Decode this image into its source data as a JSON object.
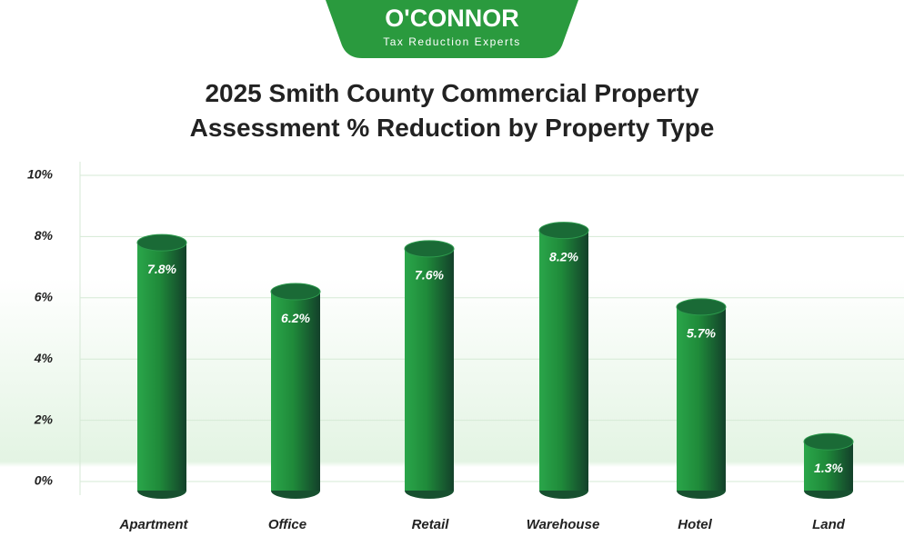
{
  "logo": {
    "name": "O'CONNOR",
    "tagline": "Tax Reduction Experts"
  },
  "chart_data": {
    "type": "bar",
    "title": "2025 Smith County Commercial Property Assessment % Reduction by Property Type",
    "categories": [
      "Apartment",
      "Office",
      "Retail",
      "Warehouse",
      "Hotel",
      "Land"
    ],
    "values": [
      7.8,
      6.2,
      7.6,
      8.2,
      5.7,
      1.3
    ],
    "value_labels": [
      "7.8%",
      "6.2%",
      "7.6%",
      "8.2%",
      "5.7%",
      "1.3%"
    ],
    "color": "#1f8a3a",
    "ylim": [
      0,
      10
    ],
    "yticks": [
      {
        "value": 0,
        "label": "0%"
      },
      {
        "value": 2,
        "label": "2%"
      },
      {
        "value": 4,
        "label": "4%"
      },
      {
        "value": 6,
        "label": "6%"
      },
      {
        "value": 8,
        "label": "8%"
      },
      {
        "value": 10,
        "label": "10%"
      }
    ],
    "grid": true
  }
}
